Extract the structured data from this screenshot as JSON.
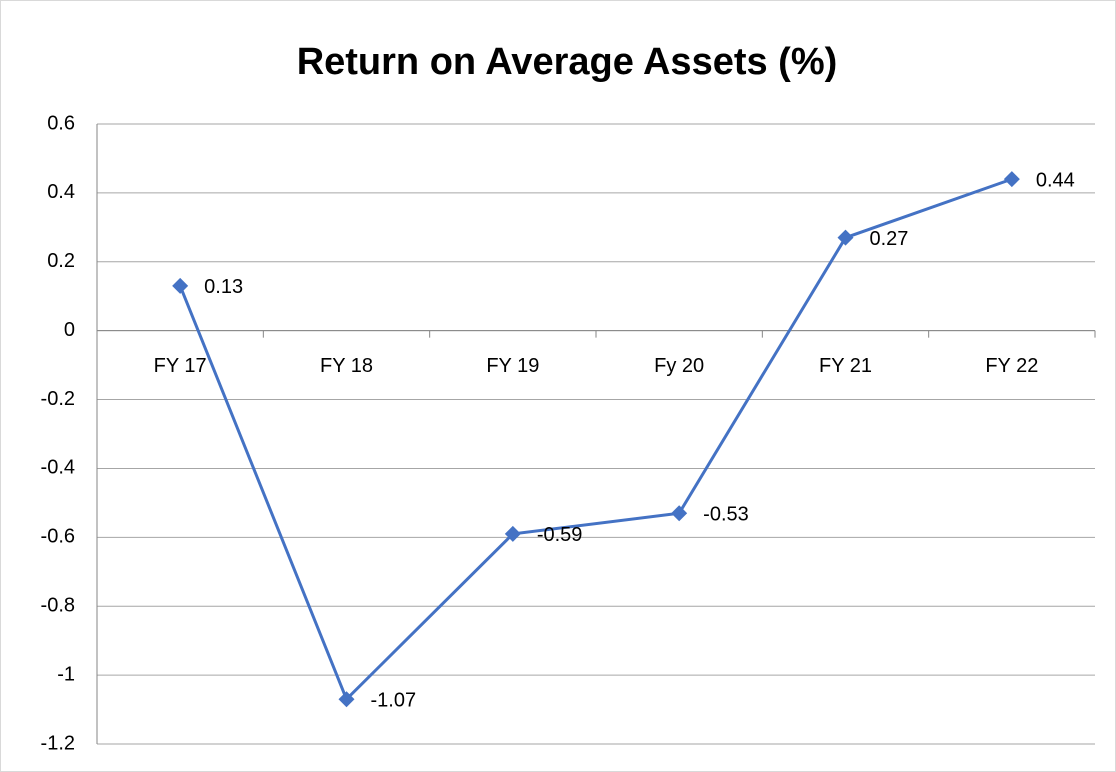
{
  "chart_data": {
    "type": "line",
    "title": "Return on Average Assets (%)",
    "categories": [
      "FY 17",
      "FY 18",
      "FY 19",
      "Fy 20",
      "FY 21",
      "FY 22"
    ],
    "series": [
      {
        "name": "Return on Average Assets (%)",
        "color": "#4472c4",
        "values": [
          0.13,
          -1.07,
          -0.59,
          -0.53,
          0.27,
          0.44
        ]
      }
    ],
    "ylim": [
      -1.2,
      0.6
    ],
    "yticks": [
      -1.2,
      -1,
      -0.8,
      -0.6,
      -0.4,
      -0.2,
      0,
      0.2,
      0.4,
      0.6
    ],
    "grid": true,
    "data_labels": true
  }
}
